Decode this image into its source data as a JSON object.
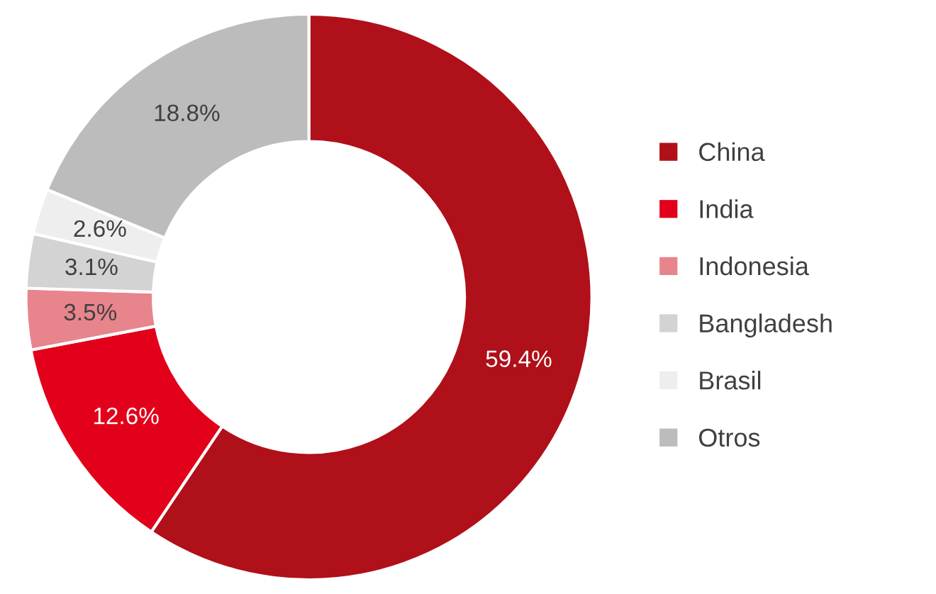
{
  "chart_data": {
    "type": "donut",
    "categories": [
      "China",
      "India",
      "Indonesia",
      "Bangladesh",
      "Brasil",
      "Otros"
    ],
    "values": [
      59.4,
      12.6,
      3.5,
      3.1,
      2.6,
      18.8
    ],
    "colors": [
      "#b01019",
      "#e2001a",
      "#e8848c",
      "#d3d3d3",
      "#eeeeee",
      "#bcbcbc"
    ],
    "value_labels": [
      "59.4%",
      "12.6%",
      "3.5%",
      "3.1%",
      "2.6%",
      "18.8%"
    ],
    "legend": "right"
  }
}
